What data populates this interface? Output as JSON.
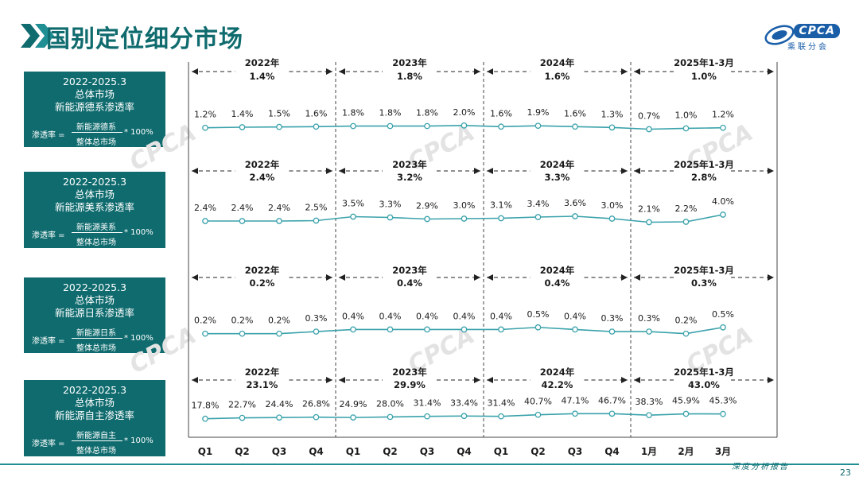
{
  "page": {
    "title": "国别定位细分市场",
    "logo_text": "CPCA",
    "logo_sub": "乘联分会",
    "footer_label": "深度分析报告",
    "page_number": "23"
  },
  "colors": {
    "title": "#0f6b6e",
    "panel_bg": "#0f6b6e",
    "line": "#3aa2ab",
    "accent": "#1f8f94"
  },
  "panels": [
    {
      "line1": "2022-2025.3",
      "line2": "总体市场",
      "line3": "新能源德系渗透率",
      "formula_lhs": "渗透率 =",
      "numerator": "新能源德系",
      "denominator": "整体总市场",
      "multiplier": "* 100%"
    },
    {
      "line1": "2022-2025.3",
      "line2": "总体市场",
      "line3": "新能源美系渗透率",
      "formula_lhs": "渗透率 =",
      "numerator": "新能源美系",
      "denominator": "整体总市场",
      "multiplier": "* 100%"
    },
    {
      "line1": "2022-2025.3",
      "line2": "总体市场",
      "line3": "新能源日系渗透率",
      "formula_lhs": "渗透率 =",
      "numerator": "新能源日系",
      "denominator": "整体总市场",
      "multiplier": "* 100%"
    },
    {
      "line1": "2022-2025.3",
      "line2": "总体市场",
      "line3": "新能源自主渗透率",
      "formula_lhs": "渗透率 =",
      "numerator": "新能源自主",
      "denominator": "整体总市场",
      "multiplier": "* 100%"
    }
  ],
  "chart_data": {
    "type": "line",
    "categories": [
      "Q1",
      "Q2",
      "Q3",
      "Q4",
      "Q1",
      "Q2",
      "Q3",
      "Q4",
      "Q1",
      "Q2",
      "Q3",
      "Q4",
      "1月",
      "2月",
      "3月"
    ],
    "periods": [
      "2022年",
      "2023年",
      "2024年",
      "2025年1-3月"
    ],
    "grid": false,
    "series": [
      {
        "values": [
          1.2,
          1.4,
          1.5,
          1.6,
          1.8,
          1.8,
          1.8,
          2.0,
          1.6,
          1.9,
          1.6,
          1.3,
          0.7,
          1.0,
          1.2
        ],
        "labels": [
          "1.2%",
          "1.4%",
          "1.5%",
          "1.6%",
          "1.8%",
          "1.8%",
          "1.8%",
          "2.0%",
          "1.6%",
          "1.9%",
          "1.6%",
          "1.3%",
          "0.7%",
          "1.0%",
          "1.2%"
        ],
        "period_totals": [
          "1.4%",
          "1.8%",
          "1.6%",
          "1.0%"
        ],
        "ylim": [
          0,
          14
        ]
      },
      {
        "values": [
          2.4,
          2.4,
          2.4,
          2.5,
          3.5,
          3.3,
          2.9,
          3.0,
          3.1,
          3.4,
          3.6,
          3.0,
          2.1,
          2.2,
          4.0
        ],
        "labels": [
          "2.4%",
          "2.4%",
          "2.4%",
          "2.5%",
          "3.5%",
          "3.3%",
          "2.9%",
          "3.0%",
          "3.1%",
          "3.4%",
          "3.6%",
          "3.0%",
          "2.1%",
          "2.2%",
          "4.0%"
        ],
        "period_totals": [
          "2.4%",
          "3.2%",
          "3.3%",
          "2.8%"
        ],
        "ylim": [
          0,
          10
        ]
      },
      {
        "values": [
          0.2,
          0.2,
          0.2,
          0.3,
          0.4,
          0.4,
          0.4,
          0.4,
          0.4,
          0.5,
          0.4,
          0.3,
          0.3,
          0.2,
          0.5
        ],
        "labels": [
          "0.2%",
          "0.2%",
          "0.2%",
          "0.3%",
          "0.4%",
          "0.4%",
          "0.4%",
          "0.4%",
          "0.4%",
          "0.5%",
          "0.4%",
          "0.3%",
          "0.3%",
          "0.2%",
          "0.5%"
        ],
        "period_totals": [
          "0.2%",
          "0.4%",
          "0.4%",
          "0.3%"
        ],
        "ylim": [
          0,
          2
        ]
      },
      {
        "values": [
          17.8,
          22.7,
          24.4,
          26.8,
          24.9,
          28.0,
          31.4,
          33.4,
          31.4,
          40.7,
          47.1,
          46.7,
          38.3,
          45.9,
          45.3
        ],
        "labels": [
          "17.8%",
          "22.7%",
          "24.4%",
          "26.8%",
          "24.9%",
          "28.0%",
          "31.4%",
          "33.4%",
          "31.4%",
          "40.7%",
          "47.1%",
          "46.7%",
          "38.3%",
          "45.9%",
          "45.3%"
        ],
        "period_totals": [
          "23.1%",
          "29.9%",
          "42.2%",
          "43.0%"
        ],
        "ylim": [
          -80,
          140
        ]
      }
    ]
  }
}
